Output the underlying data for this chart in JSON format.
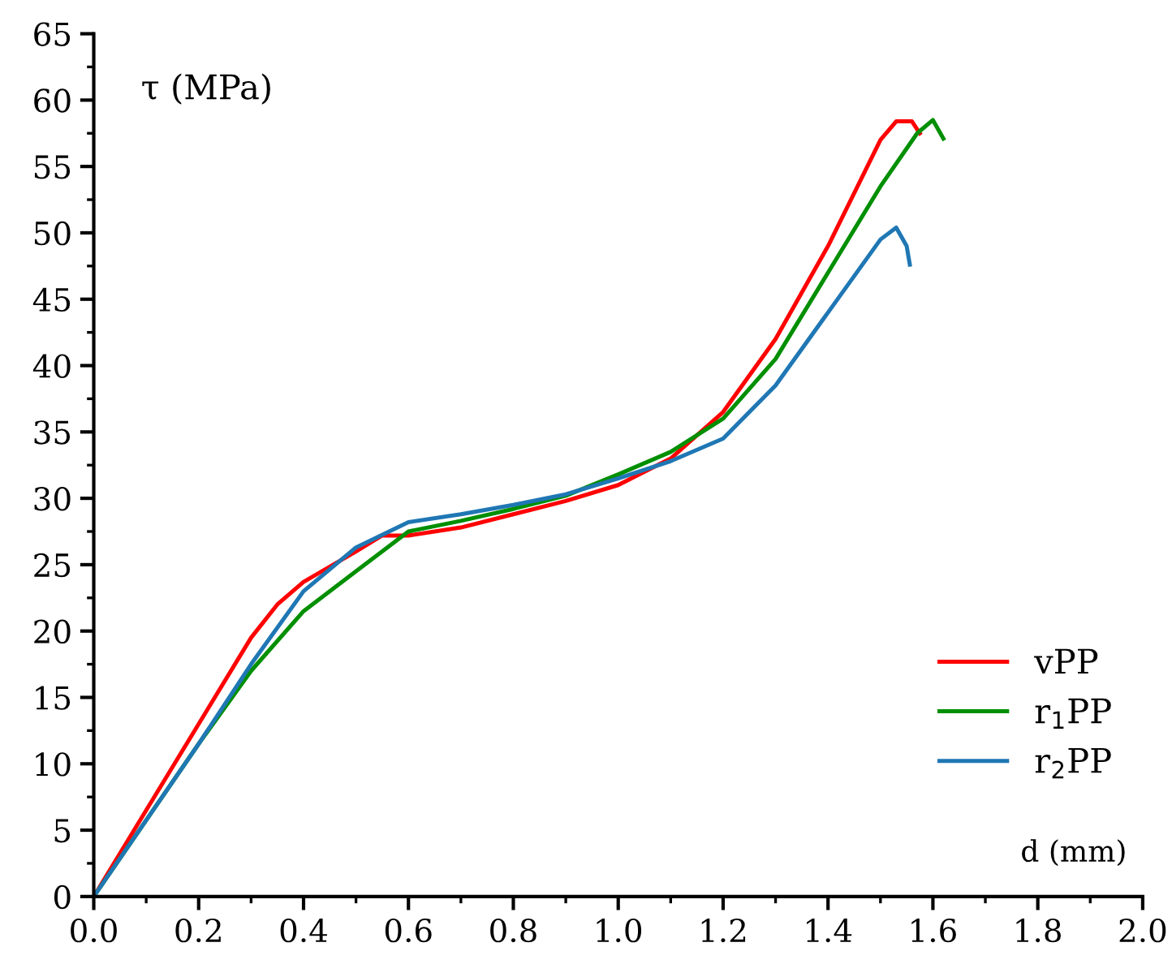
{
  "chart_data": {
    "type": "line",
    "xlabel": "d (mm)",
    "ylabel": "τ (MPa)",
    "xlim": [
      0,
      2.0
    ],
    "ylim": [
      0,
      65
    ],
    "xticks": [
      {
        "value": 0,
        "label": "0.0"
      },
      {
        "value": 0.2,
        "label": "0.2"
      },
      {
        "value": 0.4,
        "label": "0.4"
      },
      {
        "value": 0.6,
        "label": "0.6"
      },
      {
        "value": 0.8,
        "label": "0.8"
      },
      {
        "value": 1.0,
        "label": "1.0"
      },
      {
        "value": 1.2,
        "label": "1.2"
      },
      {
        "value": 1.4,
        "label": "1.4"
      },
      {
        "value": 1.6,
        "label": "1.6"
      },
      {
        "value": 1.8,
        "label": "1.8"
      },
      {
        "value": 2.0,
        "label": "2.0"
      }
    ],
    "yticks": [
      0,
      5,
      10,
      15,
      20,
      25,
      30,
      35,
      40,
      45,
      50,
      55,
      60,
      65
    ],
    "grid": false,
    "legend": "bottom right",
    "marker": "none",
    "line_style": "solid",
    "series": [
      {
        "name": "vPP",
        "color": "#ff0000",
        "x": [
          0,
          0.1,
          0.2,
          0.3,
          0.35,
          0.4,
          0.5,
          0.55,
          0.6,
          0.7,
          0.8,
          0.9,
          1.0,
          1.1,
          1.2,
          1.3,
          1.4,
          1.45,
          1.5,
          1.53,
          1.56,
          1.575
        ],
        "values": [
          0,
          6.5,
          13,
          19.5,
          22,
          23.7,
          26,
          27.2,
          27.2,
          27.8,
          28.8,
          29.8,
          31,
          33,
          36.5,
          42,
          49,
          53,
          57,
          58.4,
          58.4,
          57.5
        ]
      },
      {
        "name": "r$_{1}$PP",
        "color": "#008f00",
        "x": [
          0,
          0.2,
          0.3,
          0.4,
          0.5,
          0.6,
          0.7,
          0.8,
          0.9,
          1.0,
          1.1,
          1.2,
          1.3,
          1.4,
          1.5,
          1.57,
          1.6,
          1.62
        ],
        "values": [
          0,
          11.5,
          17,
          21.5,
          24.5,
          27.5,
          28.3,
          29.2,
          30.2,
          31.8,
          33.5,
          36,
          40.5,
          47,
          53.5,
          57.5,
          58.5,
          57.1
        ]
      },
      {
        "name": "r$_{2}$PP",
        "color": "#1f77b4",
        "x": [
          0,
          0.2,
          0.3,
          0.4,
          0.5,
          0.6,
          0.7,
          0.8,
          0.9,
          1.0,
          1.1,
          1.2,
          1.3,
          1.4,
          1.5,
          1.53,
          1.55,
          1.556
        ],
        "values": [
          0,
          11.5,
          17.5,
          23,
          26.3,
          28.2,
          28.8,
          29.5,
          30.3,
          31.5,
          32.8,
          34.5,
          38.5,
          44,
          49.5,
          50.4,
          49,
          47.6
        ]
      }
    ]
  }
}
